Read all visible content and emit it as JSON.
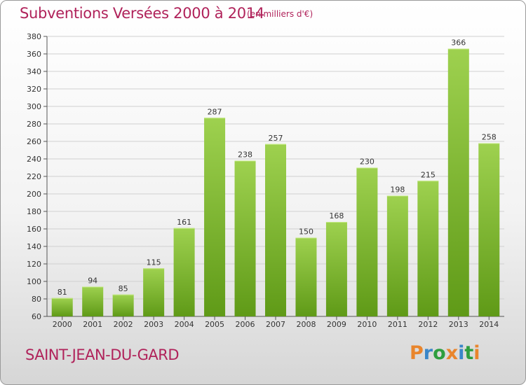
{
  "header": {
    "title": "Subventions Versées 2000 à 2014",
    "subtitle": "(en milliers d'€)"
  },
  "footer": {
    "commune": "SAINT-JEAN-DU-GARD",
    "logo_text": "Proxiti"
  },
  "colors": {
    "title": "#b0225a",
    "bar_light": "#9ed14f",
    "bar_dark": "#5f9a17",
    "grid": "#d0d0d0",
    "logo_letters": [
      "#e9852c",
      "#3a86c8",
      "#2e9e3e",
      "#e9852c",
      "#3a86c8",
      "#2e9e3e",
      "#e9852c"
    ]
  },
  "chart_data": {
    "type": "bar",
    "title": "Subventions Versées 2000 à 2014",
    "subtitle": "(en milliers d'€)",
    "xlabel": "",
    "ylabel": "",
    "categories": [
      "2000",
      "2001",
      "2002",
      "2003",
      "2004",
      "2005",
      "2006",
      "2007",
      "2008",
      "2009",
      "2010",
      "2011",
      "2012",
      "2013",
      "2014"
    ],
    "values": [
      81,
      94,
      85,
      115,
      161,
      287,
      238,
      257,
      150,
      168,
      230,
      198,
      215,
      366,
      258
    ],
    "ylim": [
      60,
      380
    ],
    "yticks": [
      60,
      80,
      100,
      120,
      140,
      160,
      180,
      200,
      220,
      240,
      260,
      280,
      300,
      320,
      340,
      360,
      380
    ],
    "grid": true,
    "legend": "none"
  }
}
